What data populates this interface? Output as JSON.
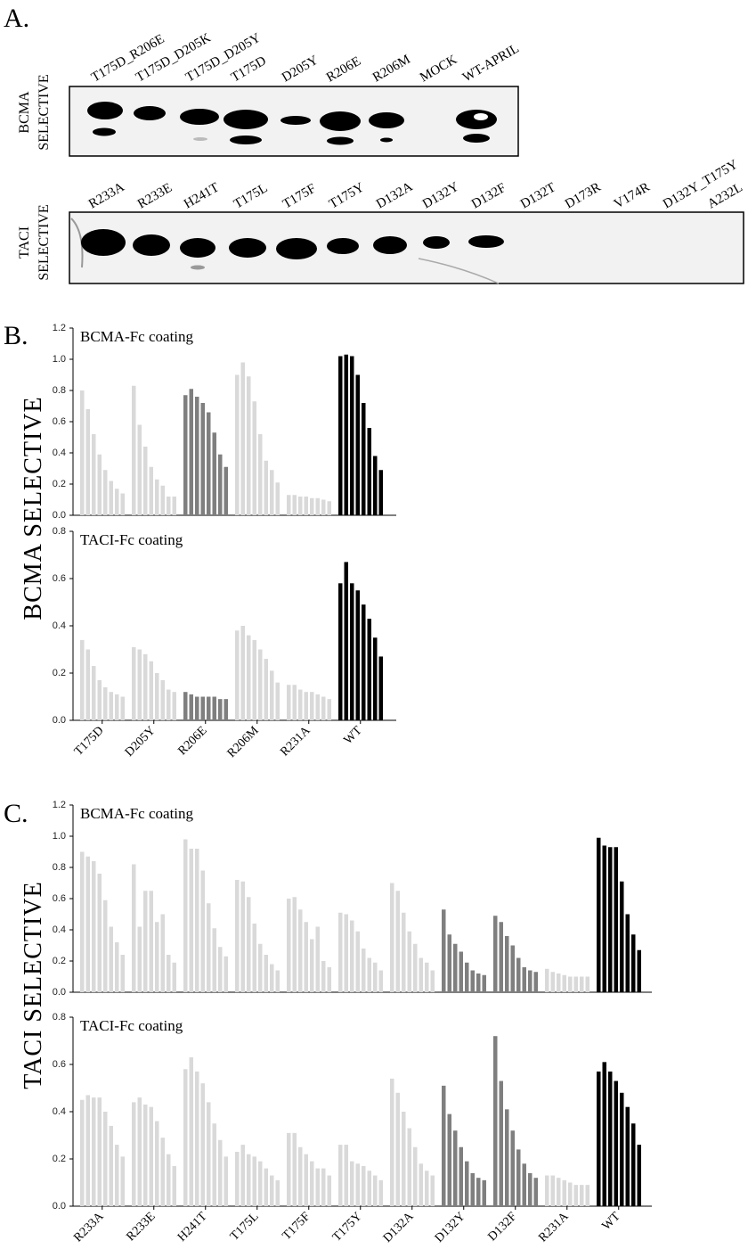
{
  "figure": {
    "panel_labels": [
      "A.",
      "B.",
      "C."
    ],
    "side_labels": [
      "BCMA SELECTIVE",
      "TACI SELECTIVE"
    ]
  },
  "blots": [
    {
      "label_lines": [
        "BCMA",
        "SELECTIVE"
      ],
      "lanes": [
        "T175D_R206E",
        "T175D_D205K",
        "T175D_D205Y",
        "T175D",
        "D205Y",
        "R206E",
        "R206M",
        "MOCK",
        "WT-APRIL"
      ]
    },
    {
      "label_lines": [
        "TACI",
        "SELECTIVE"
      ],
      "lanes": [
        "R233A",
        "R233E",
        "H241T",
        "T175L",
        "T175F",
        "T175Y",
        "D132A",
        "D132Y",
        "D132F",
        "D132T",
        "D173R",
        "V174R",
        "D132Y_T175Y",
        "A232L"
      ]
    }
  ],
  "chart_data": [
    {
      "type": "bar",
      "title": "BCMA-Fc coating",
      "ylim": [
        0,
        1.2
      ],
      "yticks": [
        {
          "value": 0,
          "label": "0.0"
        },
        0.2,
        0.4,
        0.6,
        0.8,
        {
          "value": 1,
          "label": "1.0"
        },
        1.2
      ],
      "colors": [
        "#d9d9d9",
        "#d9d9d9",
        "#7f7f7f",
        "#d9d9d9",
        "#d9d9d9",
        "#000000"
      ],
      "values": [
        [
          0.8,
          0.68,
          0.52,
          0.39,
          0.29,
          0.22,
          0.17,
          0.14
        ],
        [
          0.83,
          0.58,
          0.44,
          0.31,
          0.23,
          0.19,
          0.12,
          0.12
        ],
        [
          0.77,
          0.81,
          0.76,
          0.72,
          0.66,
          0.53,
          0.39,
          0.31
        ],
        [
          0.9,
          0.98,
          0.89,
          0.73,
          0.52,
          0.35,
          0.29,
          0.21
        ],
        [
          0.13,
          0.13,
          0.12,
          0.12,
          0.11,
          0.11,
          0.1,
          0.09
        ],
        [
          1.02,
          1.03,
          1.02,
          0.9,
          0.72,
          0.56,
          0.38,
          0.29
        ]
      ]
    },
    {
      "type": "bar",
      "title": "TACI-Fc coating",
      "ylim": [
        0,
        0.8
      ],
      "yticks": [
        {
          "value": 0,
          "label": "0.0"
        },
        0.2,
        0.4,
        0.6,
        0.8
      ],
      "categories": [
        "T175D",
        "D205Y",
        "R206E",
        "R206M",
        "R231A",
        "WT"
      ],
      "colors": [
        "#d9d9d9",
        "#d9d9d9",
        "#7f7f7f",
        "#d9d9d9",
        "#d9d9d9",
        "#000000"
      ],
      "values": [
        [
          0.34,
          0.3,
          0.23,
          0.17,
          0.14,
          0.12,
          0.11,
          0.1
        ],
        [
          0.31,
          0.3,
          0.28,
          0.25,
          0.2,
          0.17,
          0.13,
          0.12
        ],
        [
          0.12,
          0.11,
          0.1,
          0.1,
          0.1,
          0.1,
          0.09,
          0.09
        ],
        [
          0.38,
          0.4,
          0.36,
          0.34,
          0.3,
          0.26,
          0.21,
          0.16
        ],
        [
          0.15,
          0.15,
          0.13,
          0.12,
          0.12,
          0.11,
          0.1,
          0.09
        ],
        [
          0.58,
          0.67,
          0.58,
          0.55,
          0.49,
          0.43,
          0.35,
          0.27
        ]
      ]
    },
    {
      "type": "bar",
      "title": "BCMA-Fc coating",
      "ylim": [
        0,
        1.2
      ],
      "yticks": [
        {
          "value": 0,
          "label": "0.0"
        },
        0.2,
        0.4,
        0.6,
        0.8,
        {
          "value": 1,
          "label": "1.0"
        },
        1.2
      ],
      "colors": [
        "#d9d9d9",
        "#d9d9d9",
        "#d9d9d9",
        "#d9d9d9",
        "#d9d9d9",
        "#d9d9d9",
        "#d9d9d9",
        "#7f7f7f",
        "#7f7f7f",
        "#d9d9d9",
        "#000000"
      ],
      "values": [
        [
          0.9,
          0.87,
          0.84,
          0.76,
          0.59,
          0.42,
          0.32,
          0.24
        ],
        [
          0.82,
          0.42,
          0.65,
          0.65,
          0.45,
          0.5,
          0.24,
          0.19
        ],
        [
          0.98,
          0.92,
          0.92,
          0.78,
          0.57,
          0.41,
          0.29,
          0.23
        ],
        [
          0.72,
          0.71,
          0.61,
          0.44,
          0.31,
          0.24,
          0.18,
          0.14
        ],
        [
          0.6,
          0.61,
          0.53,
          0.45,
          0.34,
          0.42,
          0.2,
          0.16
        ],
        [
          0.51,
          0.5,
          0.46,
          0.39,
          0.28,
          0.22,
          0.19,
          0.14
        ],
        [
          0.7,
          0.65,
          0.51,
          0.39,
          0.31,
          0.22,
          0.19,
          0.14
        ],
        [
          0.53,
          0.37,
          0.31,
          0.26,
          0.19,
          0.14,
          0.12,
          0.11
        ],
        [
          0.49,
          0.45,
          0.36,
          0.3,
          0.22,
          0.16,
          0.14,
          0.13
        ],
        [
          0.15,
          0.13,
          0.12,
          0.11,
          0.1,
          0.1,
          0.1,
          0.1
        ],
        [
          0.99,
          0.94,
          0.93,
          0.93,
          0.71,
          0.5,
          0.37,
          0.27
        ]
      ]
    },
    {
      "type": "bar",
      "title": "TACI-Fc coating",
      "ylim": [
        0,
        0.8
      ],
      "yticks": [
        {
          "value": 0,
          "label": "0.0"
        },
        0.2,
        0.4,
        0.6,
        0.8
      ],
      "categories": [
        "R233A",
        "R233E",
        "H241T",
        "T175L",
        "T175F",
        "T175Y",
        "D132A",
        "D132Y",
        "D132F",
        "R231A",
        "WT"
      ],
      "colors": [
        "#d9d9d9",
        "#d9d9d9",
        "#d9d9d9",
        "#d9d9d9",
        "#d9d9d9",
        "#d9d9d9",
        "#d9d9d9",
        "#7f7f7f",
        "#7f7f7f",
        "#d9d9d9",
        "#000000"
      ],
      "values": [
        [
          0.45,
          0.47,
          0.46,
          0.46,
          0.4,
          0.34,
          0.26,
          0.21
        ],
        [
          0.44,
          0.46,
          0.43,
          0.42,
          0.36,
          0.29,
          0.22,
          0.17
        ],
        [
          0.58,
          0.63,
          0.57,
          0.52,
          0.44,
          0.35,
          0.28,
          0.21
        ],
        [
          0.23,
          0.26,
          0.22,
          0.21,
          0.19,
          0.16,
          0.13,
          0.11
        ],
        [
          0.31,
          0.31,
          0.25,
          0.22,
          0.19,
          0.16,
          0.16,
          0.13
        ],
        [
          0.26,
          0.26,
          0.19,
          0.18,
          0.17,
          0.15,
          0.13,
          0.11
        ],
        [
          0.54,
          0.48,
          0.4,
          0.33,
          0.25,
          0.18,
          0.15,
          0.13
        ],
        [
          0.51,
          0.39,
          0.32,
          0.25,
          0.19,
          0.14,
          0.12,
          0.11
        ],
        [
          0.72,
          0.53,
          0.41,
          0.32,
          0.24,
          0.18,
          0.14,
          0.12
        ],
        [
          0.13,
          0.13,
          0.12,
          0.11,
          0.1,
          0.09,
          0.09,
          0.09
        ],
        [
          0.57,
          0.61,
          0.57,
          0.53,
          0.48,
          0.42,
          0.35,
          0.26
        ]
      ]
    }
  ]
}
